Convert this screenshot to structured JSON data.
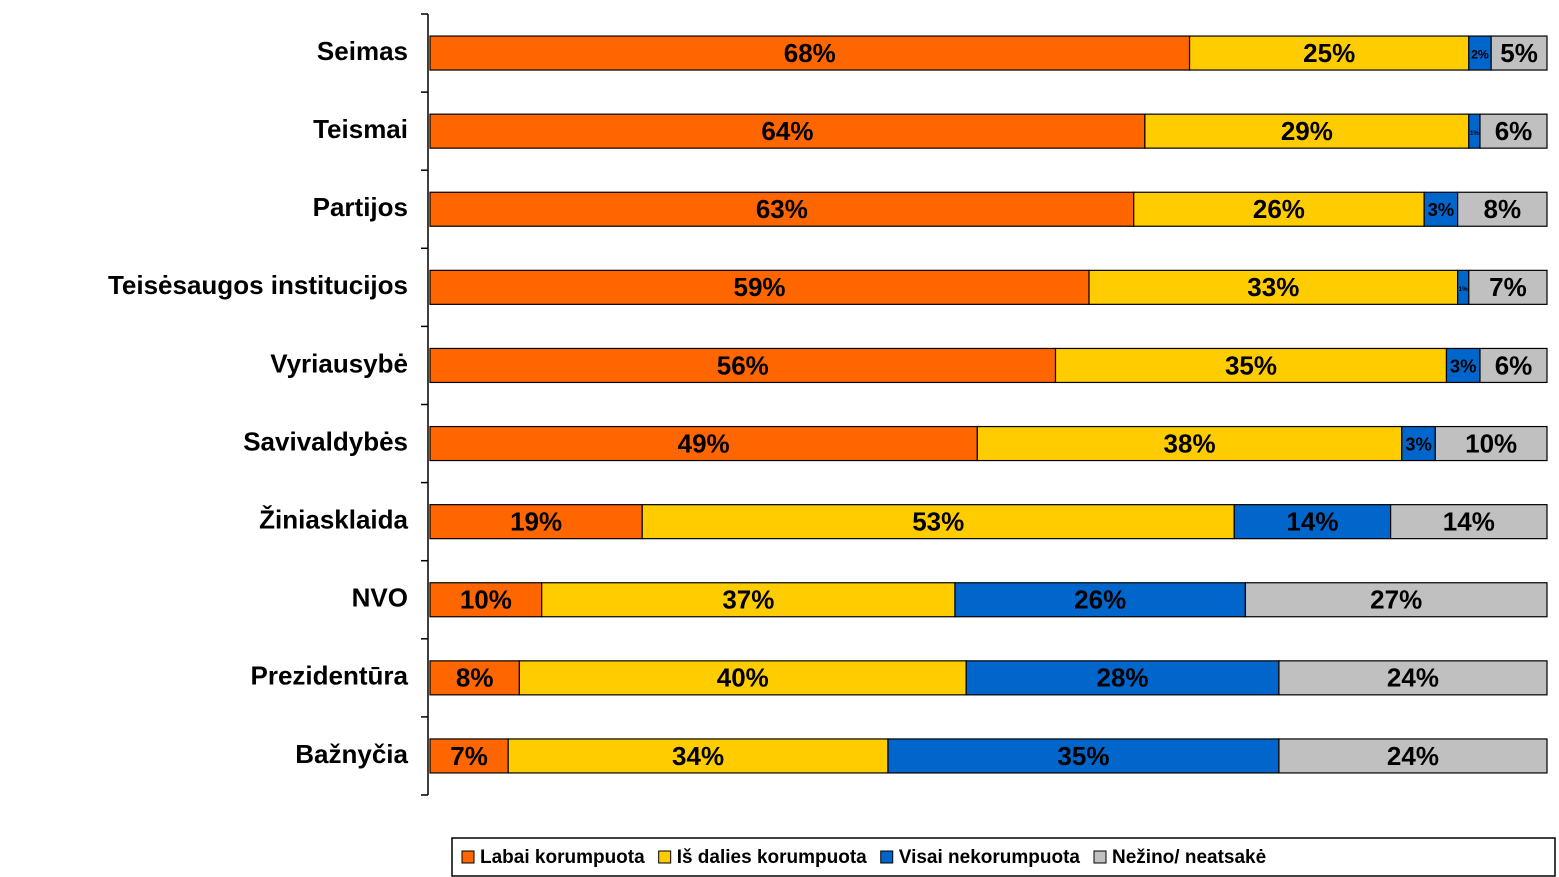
{
  "chart_data": {
    "type": "stacked_bar_horizontal",
    "categories": [
      "Seimas",
      "Teismai",
      "Partijos",
      "Teisėsaugos institucijos",
      "Vyriausybė",
      "Savivaldybės",
      "Žiniasklaida",
      "NVO",
      "Prezidentūra",
      "Bažnyčia"
    ],
    "series": [
      {
        "name": "Labai korumpuota",
        "color": "#ff6600",
        "values": [
          68,
          64,
          63,
          59,
          56,
          49,
          19,
          10,
          8,
          7
        ],
        "value_labels": [
          "68%",
          "64%",
          "63%",
          "59%",
          "56%",
          "49%",
          "19%",
          "10%",
          "8%",
          "7%"
        ]
      },
      {
        "name": "Iš dalies korumpuota",
        "color": "#ffcc00",
        "values": [
          25,
          29,
          26,
          33,
          35,
          38,
          53,
          37,
          40,
          34
        ],
        "value_labels": [
          "25%",
          "29%",
          "26%",
          "33%",
          "35%",
          "38%",
          "53%",
          "37%",
          "40%",
          "34%"
        ]
      },
      {
        "name": "Visai nekorumpuota",
        "color": "#0066cc",
        "values": [
          2,
          1,
          3,
          1,
          3,
          3,
          14,
          26,
          28,
          35
        ],
        "value_labels": [
          "2%",
          "1%",
          "3%",
          "1%",
          "3%",
          "3%",
          "14%",
          "26%",
          "28%",
          "35%"
        ]
      },
      {
        "name": "Nežino/ neatsakė",
        "color": "#c0c0c0",
        "values": [
          5,
          6,
          8,
          7,
          6,
          10,
          14,
          27,
          24,
          24
        ],
        "value_labels": [
          "5%",
          "6%",
          "8%",
          "7%",
          "6%",
          "10%",
          "14%",
          "27%",
          "24%",
          "24%"
        ]
      }
    ]
  }
}
